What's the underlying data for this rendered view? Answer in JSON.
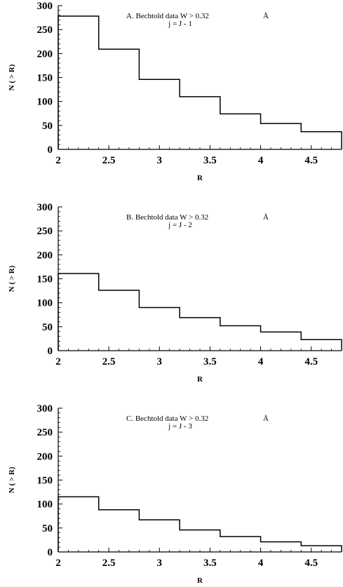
{
  "chart_data": [
    {
      "type": "step",
      "annotation_line1": "A.  Bechtold data W > 0.32",
      "annotation_unit": "Å",
      "annotation_line2": "j = J - 1",
      "xlabel": "R",
      "ylabel": "N ( > R)",
      "xlim": [
        2,
        4.8
      ],
      "ylim": [
        0,
        300
      ],
      "xticks": [
        "2",
        "2.5",
        "3",
        "3.5",
        "4",
        "4.5"
      ],
      "yticks": [
        "0",
        "50",
        "100",
        "150",
        "200",
        "250",
        "300"
      ],
      "bin_edges": [
        2,
        2.4,
        2.8,
        3.2,
        3.6,
        4,
        4.4,
        4.8
      ],
      "values": [
        278,
        209,
        146,
        110,
        74,
        54,
        37
      ]
    },
    {
      "type": "step",
      "annotation_line1": "B.  Bechtold data W > 0.32",
      "annotation_unit": "Å",
      "annotation_line2": "j = J - 2",
      "xlabel": "R",
      "ylabel": "N ( > R)",
      "xlim": [
        2,
        4.8
      ],
      "ylim": [
        0,
        300
      ],
      "xticks": [
        "2",
        "2.5",
        "3",
        "3.5",
        "4",
        "4.5"
      ],
      "yticks": [
        "0",
        "50",
        "100",
        "150",
        "200",
        "250",
        "300"
      ],
      "bin_edges": [
        2,
        2.4,
        2.8,
        3.2,
        3.6,
        4,
        4.4,
        4.8
      ],
      "values": [
        161,
        126,
        90,
        69,
        52,
        39,
        23
      ]
    },
    {
      "type": "step",
      "annotation_line1": "C.  Bechtold data W > 0.32",
      "annotation_unit": "Å",
      "annotation_line2": "j = J - 3",
      "xlabel": "R",
      "ylabel": "N ( > R)",
      "xlim": [
        2,
        4.8
      ],
      "ylim": [
        0,
        300
      ],
      "xticks": [
        "2",
        "2.5",
        "3",
        "3.5",
        "4",
        "4.5"
      ],
      "yticks": [
        "0",
        "50",
        "100",
        "150",
        "200",
        "250",
        "300"
      ],
      "bin_edges": [
        2,
        2.4,
        2.8,
        3.2,
        3.6,
        4,
        4.4,
        4.8
      ],
      "values": [
        115,
        88,
        67,
        46,
        32,
        21,
        13
      ]
    }
  ]
}
